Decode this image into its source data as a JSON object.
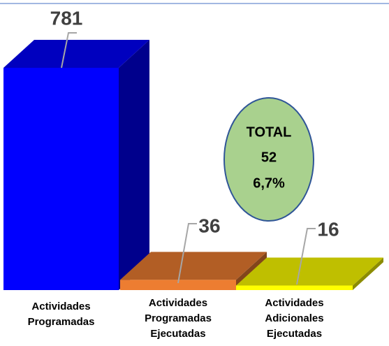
{
  "chart_data": {
    "type": "bar3d",
    "categories": [
      "Actividades Programadas",
      "Actividades Programadas Ejecutadas",
      "Actividades Adicionales Ejecutadas"
    ],
    "values": [
      781,
      36,
      16
    ],
    "colors": [
      "#0000ff",
      "#ed7d31",
      "#ffff00"
    ],
    "annotation": [
      "TOTAL",
      "52",
      "6,7%"
    ]
  }
}
